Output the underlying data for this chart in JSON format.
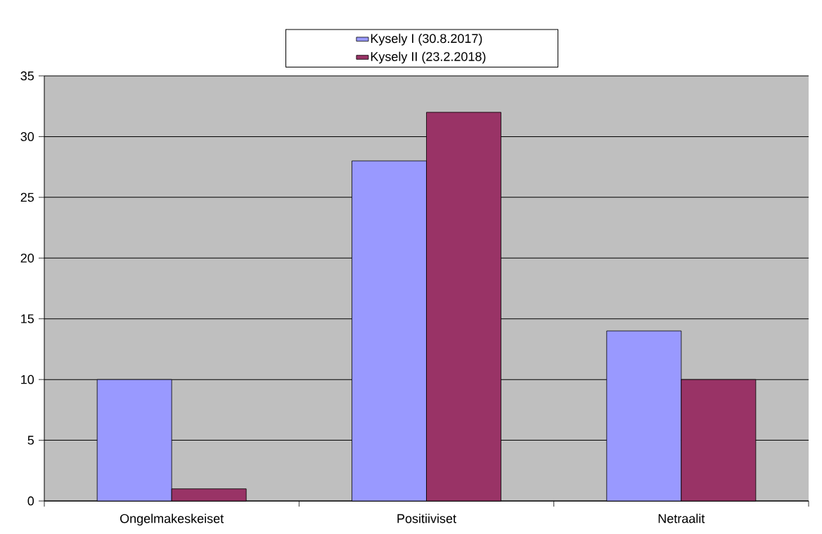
{
  "chart_data": {
    "type": "bar",
    "categories": [
      "Ongelmakeskeiset",
      "Positiiviset",
      "Netraalit"
    ],
    "series": [
      {
        "name": "Kysely I (30.8.2017)",
        "color": "#9999ff",
        "values": [
          10,
          28,
          14
        ]
      },
      {
        "name": "Kysely II (23.2.2018)",
        "color": "#993366",
        "values": [
          1,
          32,
          10
        ]
      }
    ],
    "ylim": [
      0,
      35
    ],
    "yticks": [
      0,
      5,
      10,
      15,
      20,
      25,
      30,
      35
    ],
    "grid": "y",
    "legend": "top"
  }
}
